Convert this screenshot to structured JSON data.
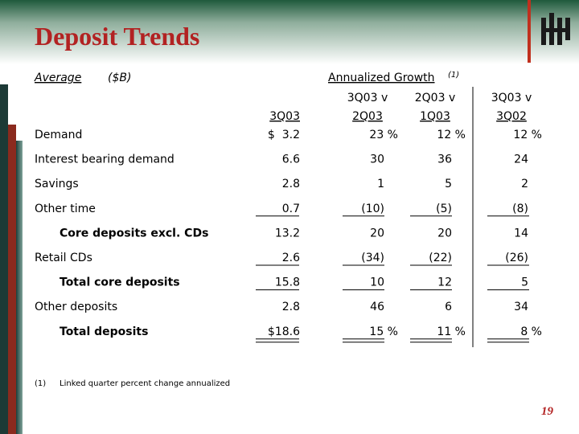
{
  "header": {
    "title": "Deposit Trends"
  },
  "table": {
    "label": "Average",
    "unit": "($B)",
    "growth_label": "Annualized Growth",
    "growth_note": "(1)",
    "current_column": "3Q03",
    "growth_columns": [
      {
        "top": "3Q03 v",
        "bottom": "2Q03"
      },
      {
        "top": "2Q03 v",
        "bottom": "1Q03"
      },
      {
        "top": "3Q03 v",
        "bottom": "3Q02"
      }
    ],
    "rows": [
      {
        "label": "Demand",
        "indent": false,
        "underline": "none",
        "value": "$  3.2",
        "growth": [
          "23 %",
          "12 %",
          "12 %"
        ]
      },
      {
        "label": "Interest bearing demand",
        "indent": false,
        "underline": "none",
        "value": "6.6",
        "growth": [
          "30",
          "36",
          "24"
        ]
      },
      {
        "label": "Savings",
        "indent": false,
        "underline": "none",
        "value": "2.8",
        "growth": [
          "1",
          "5",
          "2"
        ]
      },
      {
        "label": "Other time",
        "indent": false,
        "underline": "single",
        "value": "0.7",
        "growth": [
          "(10)",
          "(5)",
          "(8)"
        ]
      },
      {
        "label": "Core deposits excl. CDs",
        "indent": true,
        "underline": "none",
        "value": "13.2",
        "growth": [
          "20",
          "20",
          "14"
        ]
      },
      {
        "label": "Retail CDs",
        "indent": false,
        "underline": "single",
        "value": "2.6",
        "growth": [
          "(34)",
          "(22)",
          "(26)"
        ]
      },
      {
        "label": "Total core deposits",
        "indent": true,
        "underline": "single",
        "value": "15.8",
        "growth": [
          "10",
          "12",
          "5"
        ]
      },
      {
        "label": "Other deposits",
        "indent": false,
        "underline": "none",
        "value": "2.8",
        "growth": [
          "46",
          "6",
          "34"
        ]
      },
      {
        "label": "Total deposits",
        "indent": true,
        "underline": "double",
        "value": "$18.6",
        "growth": [
          "15 %",
          "11 %",
          "8 %"
        ]
      }
    ]
  },
  "footnote": {
    "marker": "(1)",
    "text": "Linked quarter percent change annualized"
  },
  "page_number": "19"
}
